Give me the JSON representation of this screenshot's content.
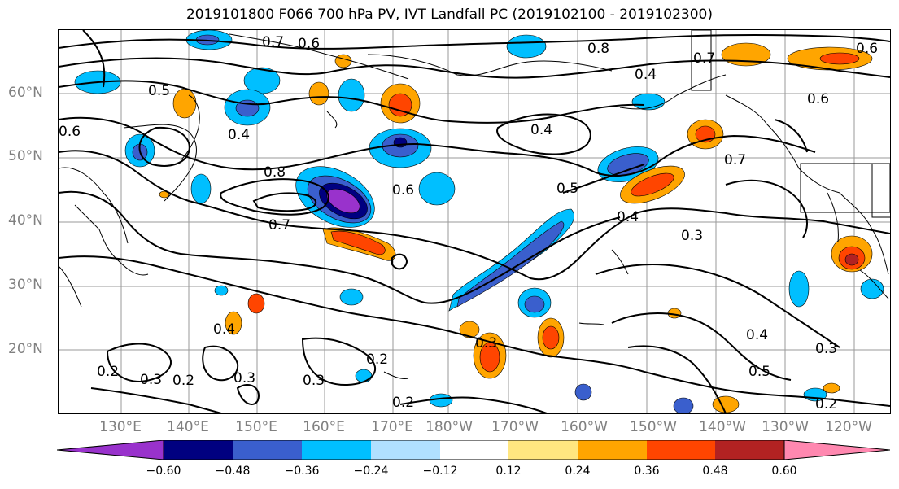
{
  "title": "2019101800 F066 700 hPa PV, IVT Landfall PC (2019102100 - 2019102300)",
  "lat_labels": [
    "60°N",
    "50°N",
    "40°N",
    "30°N",
    "20°N"
  ],
  "lon_labels": [
    "130°E",
    "140°E",
    "150°E",
    "160°E",
    "170°E",
    "180°W",
    "170°W",
    "160°W",
    "150°W",
    "140°W",
    "130°W",
    "120°W"
  ],
  "contour_labels": [
    "0.7",
    "0.6",
    "0.8",
    "0.5",
    "0.6",
    "0.6",
    "0.4",
    "0.8",
    "0.7",
    "0.5",
    "0.4",
    "0.4",
    "0.6",
    "0.4",
    "0.3",
    "0.3",
    "0.2",
    "0.3",
    "0.4",
    "0.2",
    "0.3",
    "0.2",
    "0.2",
    "0.5",
    "0.7",
    "0.4",
    "0.3",
    "0.3",
    "0.2",
    "0.6",
    "0.7"
  ],
  "colorbar": {
    "tick_labels": [
      "−0.60",
      "−0.48",
      "−0.36",
      "−0.24",
      "−0.12",
      "0.12",
      "0.24",
      "0.36",
      "0.48",
      "0.60"
    ],
    "colors": [
      "#9932cc",
      "#000080",
      "#3a5fcd",
      "#00bfff",
      "#b0e0ff",
      "#ffffff",
      "#ffe680",
      "#ffa500",
      "#ff4500",
      "#b22222",
      "#ff88b0"
    ]
  }
}
